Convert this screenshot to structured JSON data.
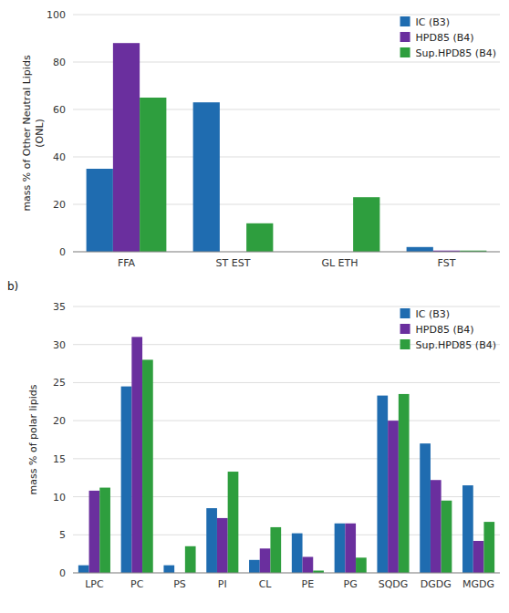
{
  "chart_data": [
    {
      "type": "bar",
      "categories": [
        "FFA",
        "ST EST",
        "GL ETH",
        "FST"
      ],
      "series": [
        {
          "name": "IC (B3)",
          "color": "#1f6cb0",
          "values": [
            35,
            63,
            0,
            2
          ]
        },
        {
          "name": "HPD85 (B4)",
          "color": "#6a2f9e",
          "values": [
            88,
            0,
            0,
            0.5
          ]
        },
        {
          "name": "Sup.HPD85 (B4)",
          "color": "#2e9e3e",
          "values": [
            65,
            12,
            23,
            0.5
          ]
        }
      ],
      "ylabel": "mass % of Other Neutral Lipids\n(ONL)",
      "ylim": [
        0,
        100
      ],
      "yticks": [
        0,
        20,
        40,
        60,
        80,
        100
      ],
      "grid": true,
      "legend": "upper right"
    },
    {
      "type": "bar",
      "title": "b)",
      "categories": [
        "LPC",
        "PC",
        "PS",
        "PI",
        "CL",
        "PE",
        "PG",
        "SQDG",
        "DGDG",
        "MGDG"
      ],
      "series": [
        {
          "name": "IC (B3)",
          "color": "#1f6cb0",
          "values": [
            1,
            24.5,
            1,
            8.5,
            1.7,
            5.2,
            6.5,
            23.3,
            17,
            11.5
          ]
        },
        {
          "name": "HPD85 (B4)",
          "color": "#6a2f9e",
          "values": [
            10.8,
            31,
            0,
            7.2,
            3.2,
            2.1,
            6.5,
            20,
            12.2,
            4.2
          ]
        },
        {
          "name": "Sup.HPD85 (B4)",
          "color": "#2e9e3e",
          "values": [
            11.2,
            28,
            3.5,
            13.3,
            6,
            0.3,
            2,
            23.5,
            9.5,
            6.7
          ]
        }
      ],
      "ylabel": "mass % of polar lipids",
      "ylim": [
        0,
        35
      ],
      "yticks": [
        0,
        5,
        10,
        15,
        20,
        25,
        30,
        35
      ],
      "grid": true,
      "legend": "upper right"
    }
  ]
}
